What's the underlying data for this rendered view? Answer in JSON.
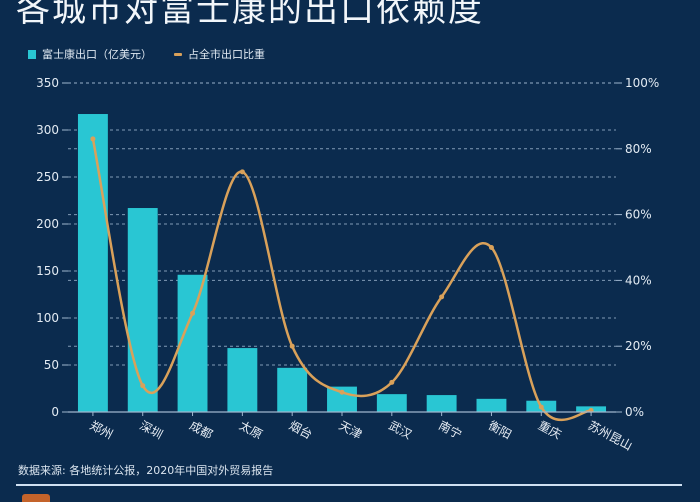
{
  "title": "各城市对富士康的出口依赖度",
  "legend": {
    "bar_label": "富士康出口（亿美元）",
    "line_label": "占全市出口比重"
  },
  "colors": {
    "background": "#0b2b4e",
    "bar": "#29c6d3",
    "line": "#d9a15a",
    "grid": "#9fb7cf"
  },
  "footer": {
    "source": "数据来源: 各地统计公报，2020年中国对外贸易报告"
  },
  "chart_data": {
    "type": "bar",
    "title": "各城市对富士康的出口依赖度",
    "categories": [
      "郑州",
      "深圳",
      "成都",
      "太原",
      "烟台",
      "天津",
      "武汉",
      "南宁",
      "衡阳",
      "重庆",
      "苏州昆山"
    ],
    "series": [
      {
        "name": "富士康出口（亿美元）",
        "type": "bar",
        "axis": "left",
        "values": [
          317,
          217,
          146,
          68,
          47,
          27,
          19,
          18,
          14,
          12,
          6
        ]
      },
      {
        "name": "占全市出口比重",
        "type": "line",
        "axis": "right",
        "values": [
          83,
          8,
          30,
          73,
          20,
          6,
          9,
          35,
          50,
          1.5,
          0.5
        ]
      }
    ],
    "xlabel": "",
    "ylabel": "",
    "ylim": [
      0,
      350
    ],
    "yticks": [
      0,
      50,
      100,
      150,
      200,
      250,
      300,
      350
    ],
    "y2lim": [
      0,
      100
    ],
    "y2ticks": [
      "0%",
      "20%",
      "40%",
      "60%",
      "80%",
      "100%"
    ],
    "grid": true,
    "legend_position": "top-left"
  }
}
